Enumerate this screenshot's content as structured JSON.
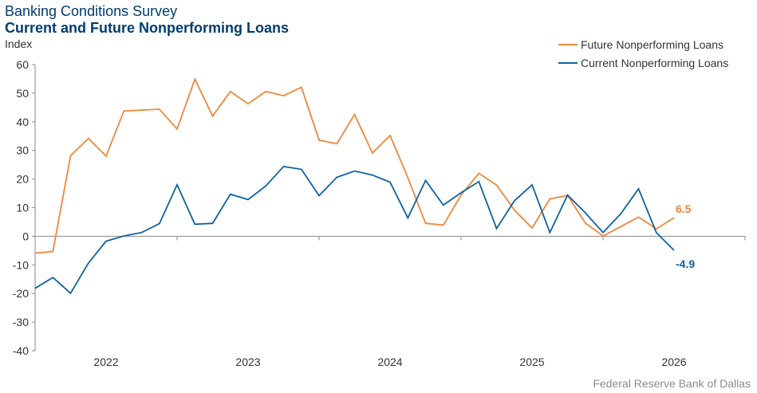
{
  "title": "Banking Conditions Survey",
  "subtitle": "Current and Future Nonperforming Loans",
  "unit": "Index",
  "source": "Federal Reserve Bank of Dallas",
  "colors": {
    "future": "#f0873a",
    "current": "#0e62a0",
    "axis": "#888888",
    "text": "#333333"
  },
  "chart_data": {
    "type": "line",
    "ylabel": "Index",
    "ylim": [
      -40,
      60
    ],
    "yticks": [
      60,
      50,
      40,
      30,
      20,
      10,
      0,
      -10,
      -20,
      -30,
      -40
    ],
    "xlim": [
      2021.5,
      2026.5
    ],
    "xticks": [
      "2022",
      "2023",
      "2024",
      "2025",
      "2026"
    ],
    "legend_position": "top-right",
    "x": [
      2021.5,
      2021.625,
      2021.75,
      2021.875,
      2022.0,
      2022.125,
      2022.25,
      2022.375,
      2022.5,
      2022.625,
      2022.75,
      2022.875,
      2023.0,
      2023.125,
      2023.25,
      2023.375,
      2023.5,
      2023.625,
      2023.75,
      2023.875,
      2024.0,
      2024.125,
      2024.25,
      2024.375,
      2024.5,
      2024.625,
      2024.75,
      2024.875,
      2025.0,
      2025.125,
      2025.25,
      2025.375,
      2025.5,
      2025.625,
      2025.75,
      2025.875,
      2026.0
    ],
    "series": [
      {
        "name": "Future Nonperforming Loans",
        "values": [
          -5.9,
          -5.3,
          28.2,
          34.2,
          28.0,
          43.8,
          44.1,
          44.4,
          37.5,
          54.9,
          42.0,
          50.6,
          46.3,
          50.6,
          49.1,
          52.1,
          33.6,
          32.3,
          42.6,
          29.1,
          35.2,
          20.5,
          4.5,
          3.9,
          14.4,
          22.0,
          17.9,
          9.2,
          2.9,
          13.1,
          14.3,
          4.6,
          0.1,
          3.4,
          6.7,
          2.6,
          6.5
        ],
        "end_label": "6.5"
      },
      {
        "name": "Current Nonperforming Loans",
        "values": [
          -18.2,
          -14.4,
          -19.9,
          -9.4,
          -1.7,
          0.1,
          1.3,
          4.4,
          18.0,
          4.2,
          4.5,
          14.7,
          12.8,
          17.6,
          24.4,
          23.4,
          14.2,
          20.6,
          22.8,
          21.4,
          18.9,
          6.4,
          19.5,
          10.9,
          15.2,
          19.1,
          2.7,
          12.4,
          18.0,
          1.3,
          14.4,
          8.2,
          1.3,
          7.9,
          16.6,
          1.3,
          -4.9
        ],
        "end_label": "-4.9"
      }
    ]
  }
}
